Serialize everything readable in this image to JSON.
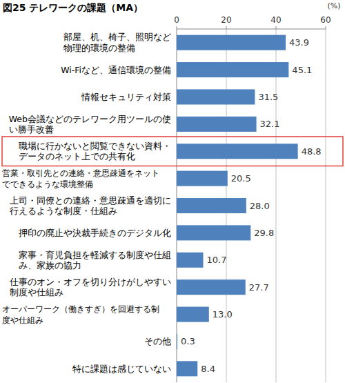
{
  "chart_data": {
    "type": "bar",
    "orientation": "horizontal",
    "title": "図25 テレワークの課題（MA）",
    "xlabel": "(%)",
    "categories": [
      "部屋、机、椅子、照明など\n物理的環境の整備",
      "Wi-Fiなど、通信環境の整備",
      "情報セキュリティ対策",
      "Web会議などのテレワーク用ツールの使\nい勝手改善",
      "職場に行かないと閲覧できない資料・\nデータのネット上での共有化",
      "営業・取引先との連絡・意思疎通をネット\nでできるような環境整備",
      "上司・同僚との連絡・意思疎通を適切に\n行えるような制度・仕組み",
      "押印の廃止や決裁手続きのデジタル化",
      "家事・育児負担を軽減する制度や仕組\nみ、家族の協力",
      "仕事のオン・オフを切り分けがしやすい\n制度や仕組み",
      "オーバーワーク（働きすぎ）を回避する制\n度や仕組み",
      "その他",
      "特に課題は感じていない"
    ],
    "values": [
      43.9,
      45.1,
      31.5,
      32.1,
      48.8,
      20.5,
      28.0,
      29.8,
      10.7,
      27.7,
      13.0,
      0.3,
      8.4
    ],
    "value_labels": [
      "43.9",
      "45.1",
      "31.5",
      "32.1",
      "48.8",
      "20.5",
      "28.0",
      "29.8",
      "10.7",
      "27.7",
      "13.0",
      "0.3",
      "8.4"
    ],
    "color": "#4f81bd",
    "xlim": [
      0,
      60
    ],
    "xticks": [
      0,
      20,
      40,
      60
    ],
    "grid": true,
    "data_labels": true
  }
}
